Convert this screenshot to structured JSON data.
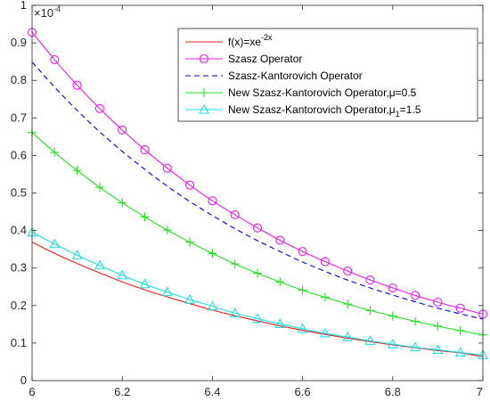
{
  "chart_data": {
    "type": "line",
    "title": "",
    "xlabel": "",
    "ylabel": "",
    "y_multiplier_label": "×10^-4",
    "xlim": [
      6,
      7
    ],
    "ylim": [
      0,
      1
    ],
    "xticks": [
      "6",
      "6.2",
      "6.4",
      "6.6",
      "6.8",
      "7"
    ],
    "yticks": [
      "0",
      "0.1",
      "0.2",
      "0.3",
      "0.4",
      "0.5",
      "0.6",
      "0.7",
      "0.8",
      "0.9",
      "1"
    ],
    "grid": false,
    "legend_position": "top-right",
    "x": [
      6,
      6.05,
      6.1,
      6.15,
      6.2,
      6.25,
      6.3,
      6.35,
      6.4,
      6.45,
      6.5,
      6.55,
      6.6,
      6.65,
      6.7,
      6.75,
      6.8,
      6.85,
      6.9,
      6.95,
      7
    ],
    "series": [
      {
        "name": "f(x)=xe^{-2x}",
        "legend_label": {
          "main": "f(x)=xe",
          "sup": "-2x"
        },
        "color": "#e41a1c",
        "dash": "solid",
        "marker": "none",
        "values": [
          0.369,
          0.339,
          0.312,
          0.287,
          0.263,
          0.242,
          0.223,
          0.205,
          0.188,
          0.173,
          0.159,
          0.146,
          0.134,
          0.123,
          0.113,
          0.104,
          0.095,
          0.088,
          0.08,
          0.074,
          0.064
        ]
      },
      {
        "name": "Szasz Operator",
        "legend_label": {
          "main": "Szasz Operator"
        },
        "color": "#e61ae6",
        "dash": "solid",
        "marker": "circle",
        "values": [
          0.928,
          0.855,
          0.787,
          0.725,
          0.668,
          0.615,
          0.566,
          0.521,
          0.479,
          0.442,
          0.407,
          0.374,
          0.344,
          0.317,
          0.292,
          0.268,
          0.247,
          0.227,
          0.209,
          0.193,
          0.177
        ]
      },
      {
        "name": "Szasz-Kantorovich Operator",
        "legend_label": {
          "main": "Szasz-Kantorovich Operator"
        },
        "color": "#0000cc",
        "dash": "dashed",
        "marker": "none",
        "values": [
          0.849,
          0.782,
          0.72,
          0.663,
          0.611,
          0.563,
          0.518,
          0.477,
          0.44,
          0.405,
          0.373,
          0.344,
          0.316,
          0.291,
          0.268,
          0.247,
          0.228,
          0.21,
          0.193,
          0.178,
          0.164
        ]
      },
      {
        "name": "New Szasz-Kantorovich Operator,μ=0.5",
        "legend_label": {
          "main": "New Szasz-Kantorovich Operator,μ=0.5"
        },
        "color": "#22dd22",
        "dash": "solid",
        "marker": "plus",
        "values": [
          0.661,
          0.608,
          0.56,
          0.515,
          0.474,
          0.436,
          0.401,
          0.369,
          0.339,
          0.311,
          0.286,
          0.263,
          0.241,
          0.222,
          0.204,
          0.187,
          0.172,
          0.158,
          0.145,
          0.133,
          0.122
        ]
      },
      {
        "name": "New Szasz-Kantorovich Operator,μ1=1.5",
        "legend_label": {
          "main": "New Szasz-Kantorovich Operator,μ",
          "sub": "1",
          "tail": "=1.5"
        },
        "color": "#22dddd",
        "dash": "solid",
        "marker": "triangle",
        "values": [
          0.395,
          0.364,
          0.334,
          0.307,
          0.281,
          0.257,
          0.236,
          0.216,
          0.198,
          0.18,
          0.165,
          0.151,
          0.138,
          0.126,
          0.116,
          0.106,
          0.097,
          0.089,
          0.082,
          0.075,
          0.068
        ]
      }
    ]
  }
}
